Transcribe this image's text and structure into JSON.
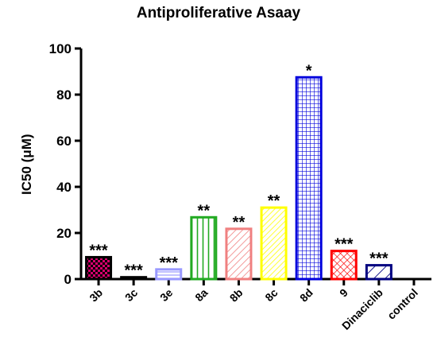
{
  "chart_data": {
    "type": "bar",
    "title": "Antiproliferative Asaay",
    "xlabel": "",
    "ylabel": "IC50 (μM)",
    "ylim": [
      0,
      100
    ],
    "yticks": [
      0,
      20,
      40,
      60,
      80,
      100
    ],
    "grid": false,
    "categories": [
      "3b",
      "3c",
      "3e",
      "8a",
      "8b",
      "8c",
      "8d",
      "9",
      "Dinaciclib",
      "control"
    ],
    "values": [
      9.5,
      0.8,
      4.2,
      26.8,
      21.8,
      31.0,
      87.5,
      12.2,
      6.0,
      0
    ],
    "significance": [
      "***",
      "***",
      "***",
      "**",
      "**",
      "**",
      "*",
      "***",
      "***",
      ""
    ],
    "bar_colors": [
      "#000000",
      "#000000",
      "#9999ff",
      "#22aa22",
      "#f08080",
      "#ffff00",
      "#0000dd",
      "#ff0000",
      "#000080",
      "#000000"
    ],
    "patterns": [
      "check-magenta",
      "solid-black",
      "horizontal-lavender",
      "vertical-green",
      "diagonal-salmon",
      "diagonal-yellow",
      "grid-blue",
      "cross-red",
      "diagonal-navy",
      "none"
    ]
  }
}
